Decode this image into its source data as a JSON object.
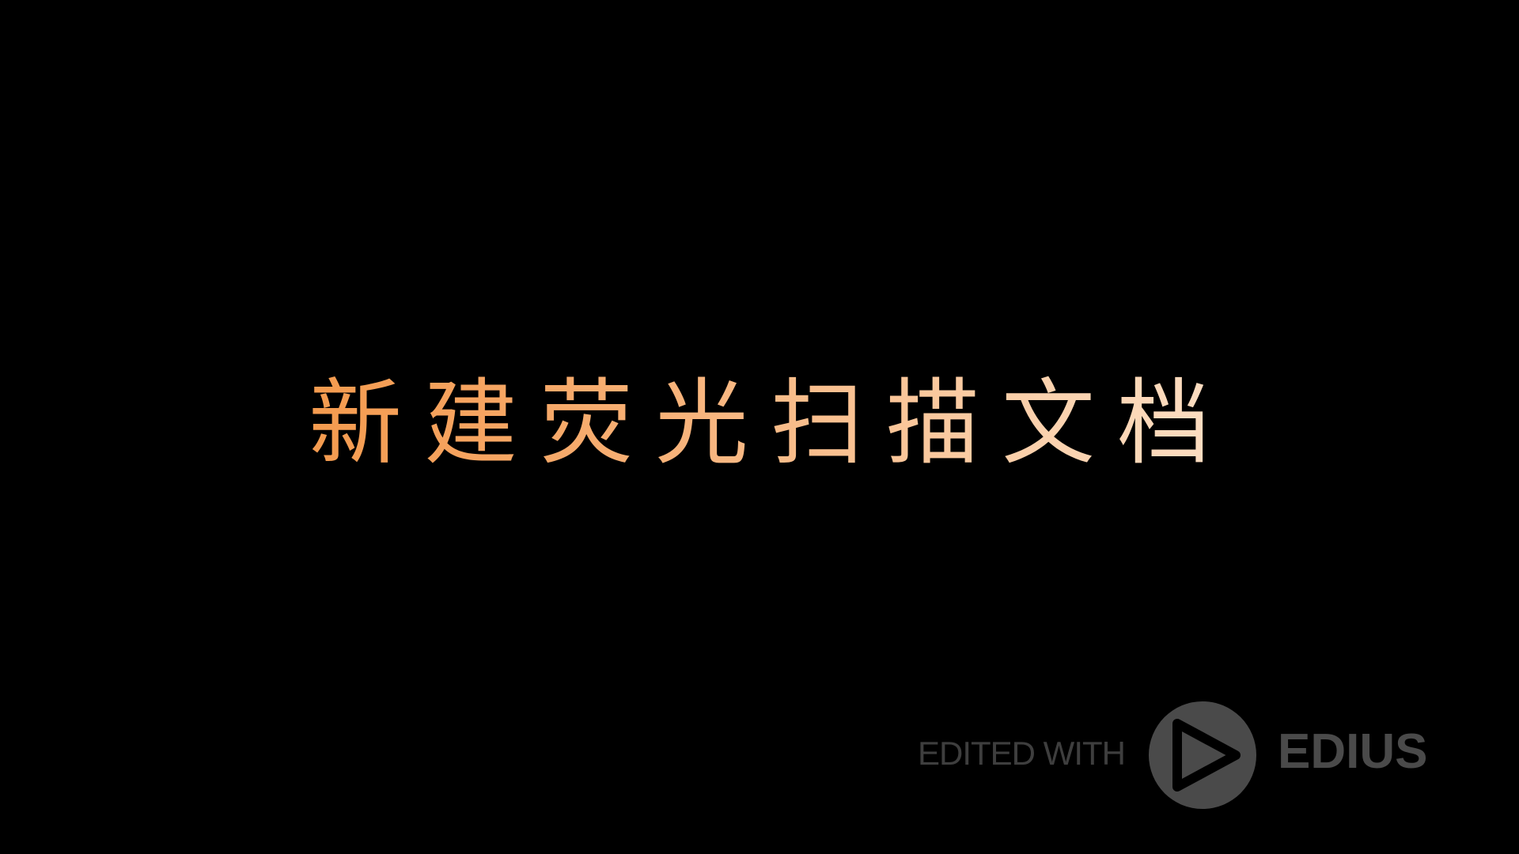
{
  "title": "新建荧光扫描文档",
  "colors": {
    "background": "#000000",
    "title_gradient_start": "#f28a2e",
    "title_gradient_end": "#fff1e4",
    "watermark": "#444444"
  },
  "watermark": {
    "prefix": "EDITED WITH",
    "brand": "EDIUS",
    "icon": "play-icon"
  }
}
